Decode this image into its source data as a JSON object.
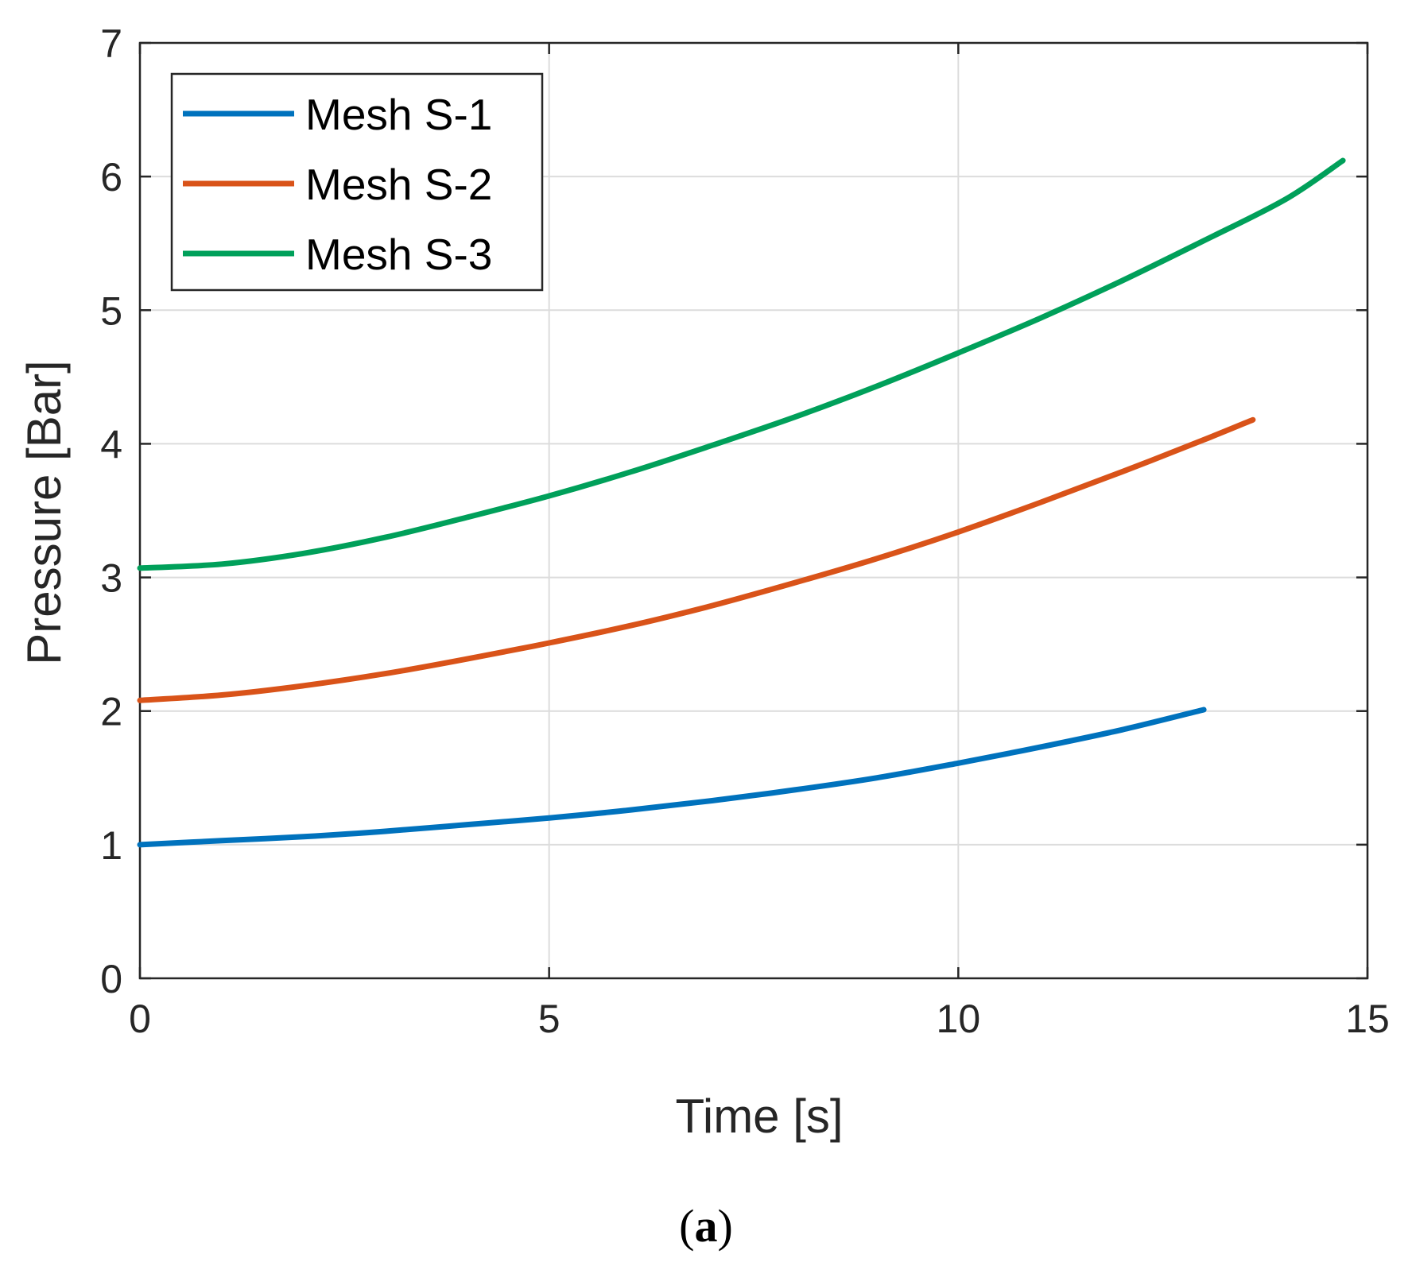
{
  "chart_data": {
    "type": "line",
    "title": "",
    "xlabel": "Time [s]",
    "ylabel": "Pressure [Bar]",
    "xlim": [
      0,
      15
    ],
    "ylim": [
      0,
      7
    ],
    "xticks": [
      0,
      5,
      10,
      15
    ],
    "yticks": [
      0,
      1,
      2,
      3,
      4,
      5,
      6,
      7
    ],
    "xtick_labels": [
      "0",
      "5",
      "10",
      "15"
    ],
    "ytick_labels": [
      "0",
      "1",
      "2",
      "3",
      "4",
      "5",
      "6",
      "7"
    ],
    "grid": true,
    "legend_position": "top-left",
    "series": [
      {
        "name": "Mesh S-1",
        "color": "#0072BD",
        "x": [
          0,
          1,
          2,
          3,
          4,
          5,
          6,
          7,
          8,
          9,
          10,
          11,
          12,
          13
        ],
        "y": [
          1.0,
          1.03,
          1.06,
          1.1,
          1.15,
          1.2,
          1.26,
          1.33,
          1.41,
          1.5,
          1.61,
          1.73,
          1.86,
          2.01
        ]
      },
      {
        "name": "Mesh S-2",
        "color": "#D95319",
        "x": [
          0,
          1,
          2,
          3,
          4,
          5,
          6,
          7,
          8,
          9,
          10,
          11,
          12,
          13,
          13.6
        ],
        "y": [
          2.08,
          2.12,
          2.19,
          2.28,
          2.39,
          2.51,
          2.64,
          2.79,
          2.96,
          3.14,
          3.34,
          3.56,
          3.79,
          4.03,
          4.18
        ]
      },
      {
        "name": "Mesh S-3",
        "color": "#00A05A",
        "x": [
          0,
          1,
          2,
          3,
          4,
          5,
          6,
          7,
          8,
          9,
          10,
          11,
          12,
          13,
          14,
          14.7
        ],
        "y": [
          3.07,
          3.1,
          3.18,
          3.3,
          3.45,
          3.61,
          3.79,
          3.99,
          4.2,
          4.43,
          4.68,
          4.94,
          5.22,
          5.52,
          5.83,
          6.12
        ]
      }
    ]
  },
  "caption": {
    "open": "(",
    "label": "a",
    "close": ")"
  }
}
